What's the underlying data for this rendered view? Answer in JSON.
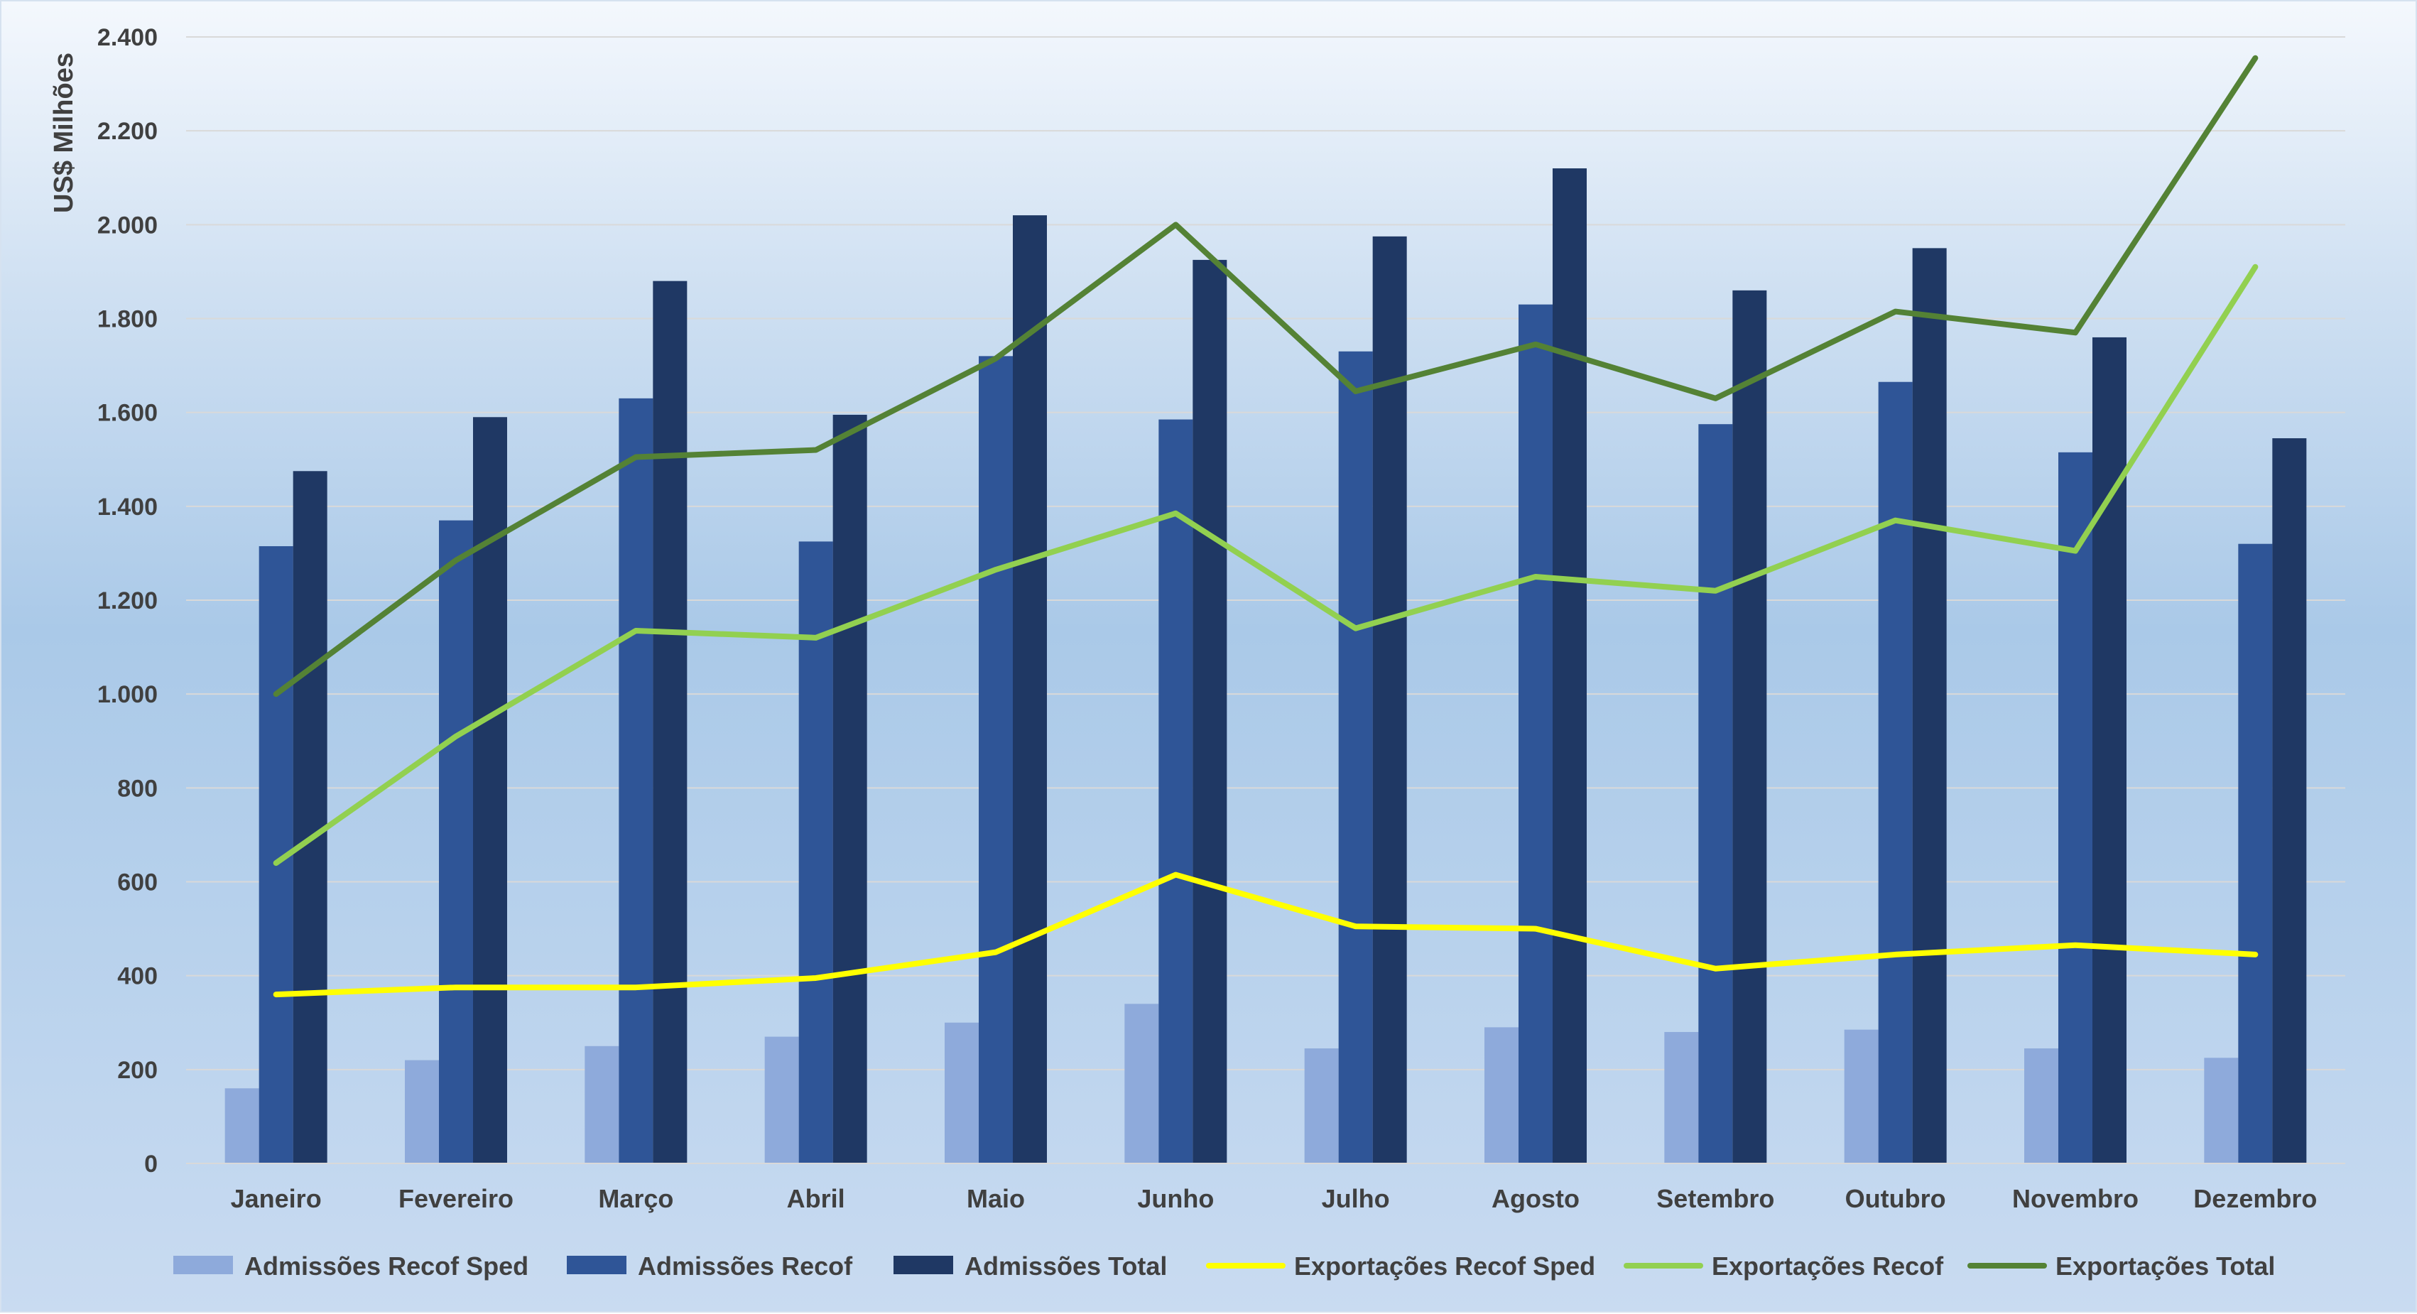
{
  "chart_data": {
    "type": "bar",
    "title": "",
    "xlabel": "",
    "ylabel": "US$ Milhões",
    "ylim": [
      0,
      2400
    ],
    "yticks": [
      0,
      200,
      400,
      600,
      800,
      1000,
      1200,
      1400,
      1600,
      1800,
      2000,
      2200,
      2400
    ],
    "ytick_labels": [
      "0",
      "200",
      "400",
      "600",
      "800",
      "1.000",
      "1.200",
      "1.400",
      "1.600",
      "1.800",
      "2.000",
      "2.200",
      "2.400"
    ],
    "grid": true,
    "legend_position": "bottom",
    "categories": [
      "Janeiro",
      "Fevereiro",
      "Março",
      "Abril",
      "Maio",
      "Junho",
      "Julho",
      "Agosto",
      "Setembro",
      "Outubro",
      "Novembro",
      "Dezembro"
    ],
    "series": [
      {
        "name": "Admissões Recof Sped",
        "kind": "bar",
        "color": "#8eaadb",
        "values": [
          160,
          220,
          250,
          270,
          300,
          340,
          245,
          290,
          280,
          285,
          245,
          225
        ]
      },
      {
        "name": "Admissões Recof",
        "kind": "bar",
        "color": "#2f5597",
        "values": [
          1315,
          1370,
          1630,
          1325,
          1720,
          1585,
          1730,
          1830,
          1575,
          1665,
          1515,
          1320
        ]
      },
      {
        "name": "Admissões Total",
        "kind": "bar",
        "color": "#1f3864",
        "values": [
          1475,
          1590,
          1880,
          1595,
          2020,
          1925,
          1975,
          2120,
          1860,
          1950,
          1760,
          1545
        ]
      },
      {
        "name": "Exportações Recof Sped",
        "kind": "line",
        "color": "#ffff00",
        "values": [
          360,
          375,
          375,
          395,
          450,
          615,
          505,
          500,
          415,
          445,
          465,
          445
        ]
      },
      {
        "name": "Exportações Recof",
        "kind": "line",
        "color": "#92d050",
        "values": [
          640,
          910,
          1135,
          1120,
          1265,
          1385,
          1140,
          1250,
          1220,
          1370,
          1305,
          1910
        ]
      },
      {
        "name": "Exportações Total",
        "kind": "line",
        "color": "#548235",
        "values": [
          1000,
          1285,
          1505,
          1520,
          1715,
          2000,
          1645,
          1745,
          1630,
          1815,
          1770,
          2355
        ]
      }
    ]
  }
}
